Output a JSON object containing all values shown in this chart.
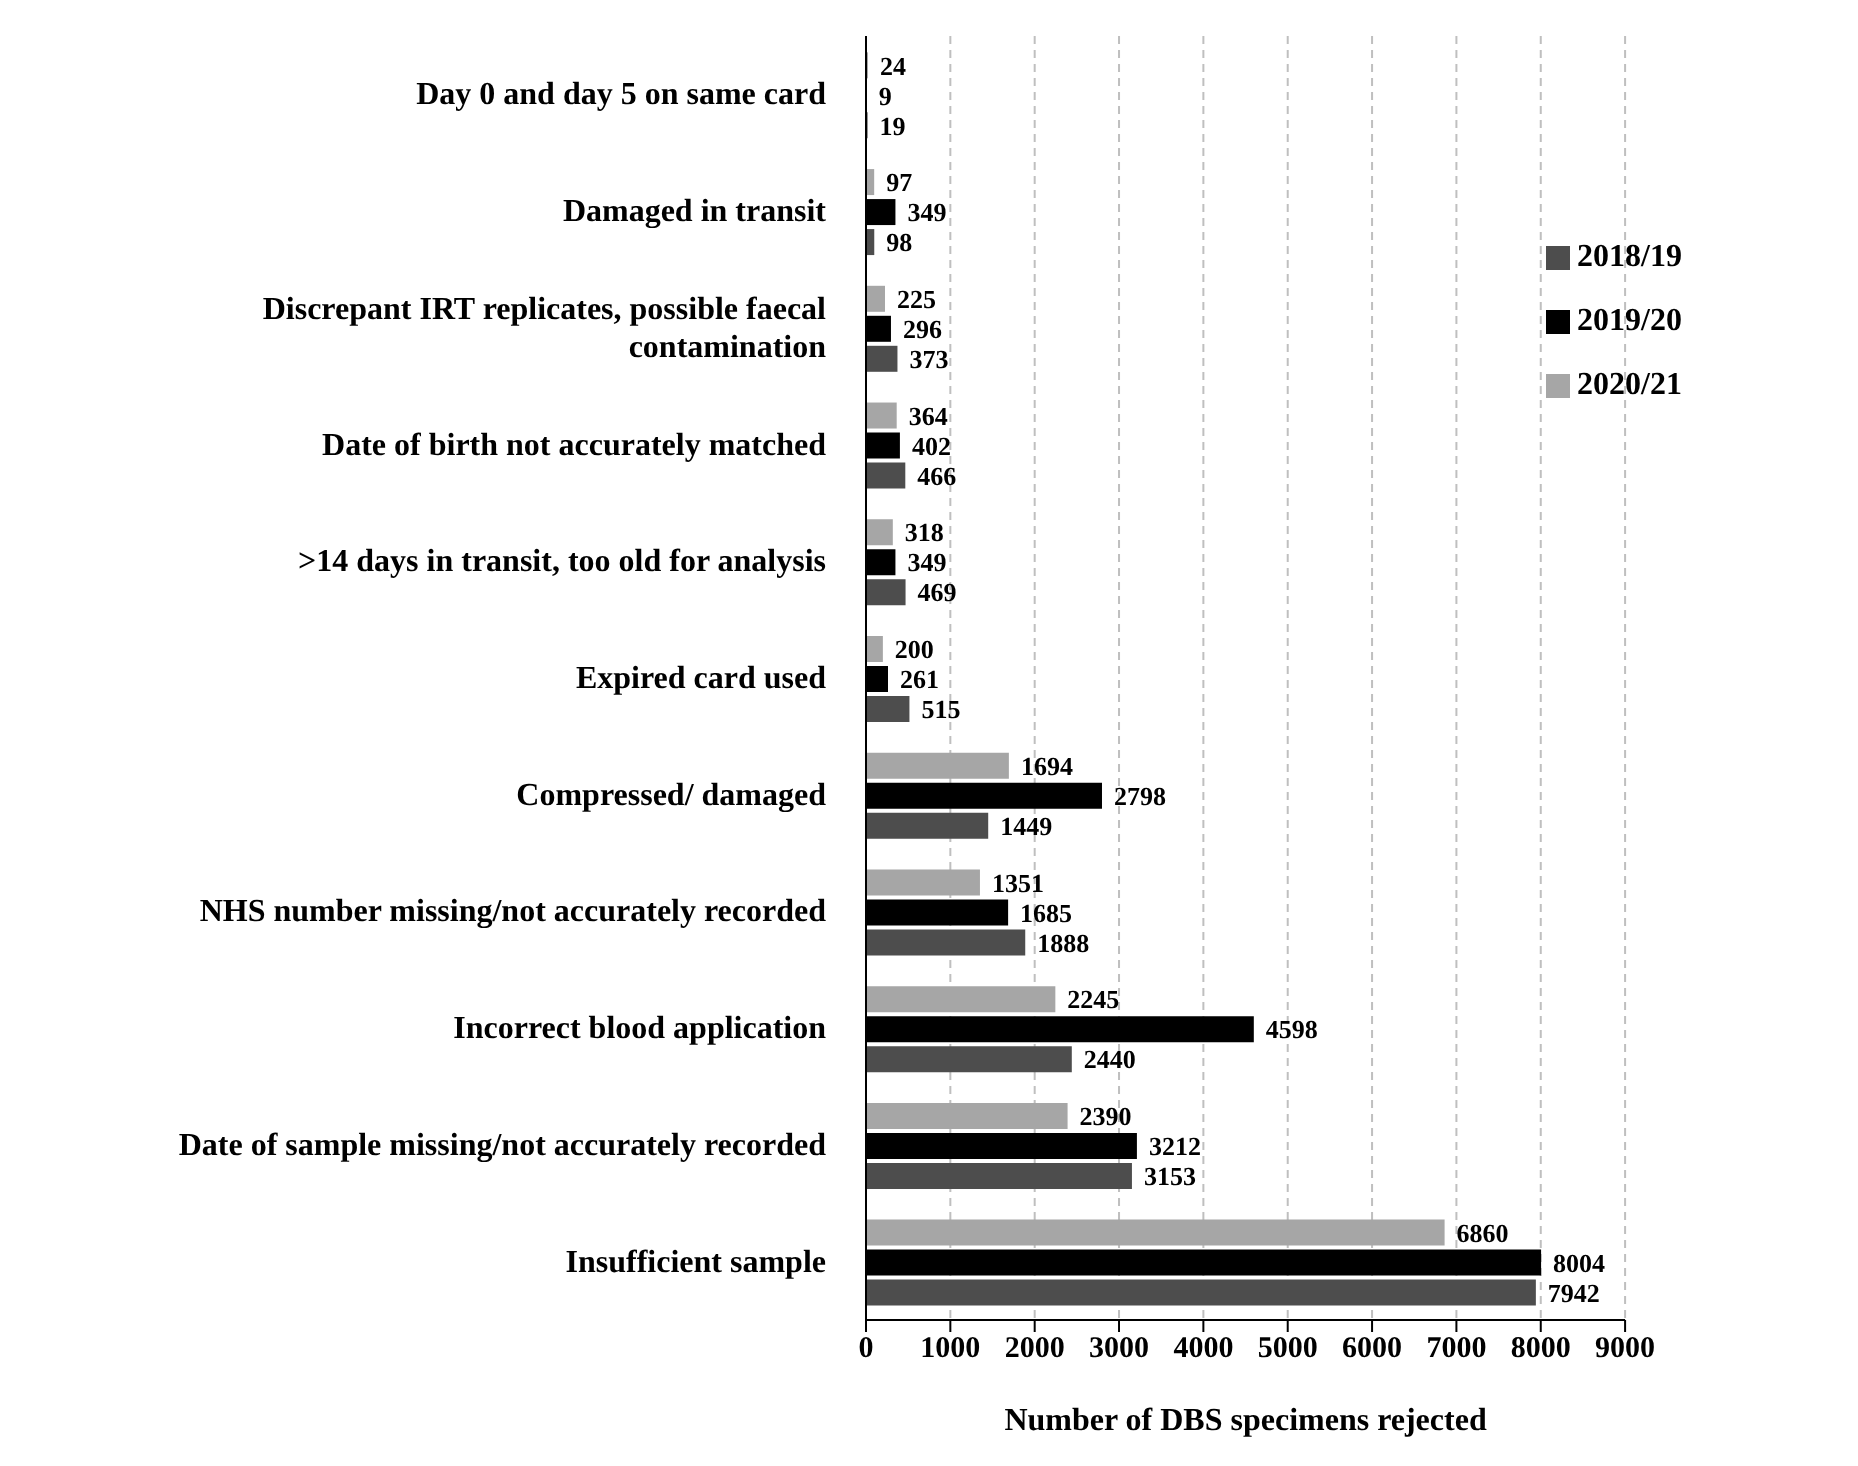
{
  "chart_data": {
    "type": "bar",
    "orientation": "horizontal",
    "xlabel": "Number of DBS specimens rejected",
    "categories": [
      "Day 0 and day 5 on same card",
      "Damaged in transit",
      "Discrepant IRT replicates, possible faecal contamination",
      "Date of birth not accurately matched",
      ">14 days in transit, too old for analysis",
      "Expired card used",
      "Compressed/ damaged",
      "NHS number missing/not accurately recorded",
      "Incorrect blood application",
      "Date of sample missing/not accurately recorded",
      "Insufficient sample"
    ],
    "series": [
      {
        "name": "2020/21",
        "color": "#a6a6a6",
        "values": [
          24,
          97,
          225,
          364,
          318,
          200,
          1694,
          1351,
          2245,
          2390,
          6860
        ]
      },
      {
        "name": "2019/20",
        "color": "#000000",
        "values": [
          9,
          349,
          296,
          402,
          349,
          261,
          2798,
          1685,
          4598,
          3212,
          8004
        ]
      },
      {
        "name": "2018/19",
        "color": "#4d4d4d",
        "values": [
          19,
          98,
          373,
          466,
          469,
          515,
          1449,
          1888,
          2440,
          3153,
          7942
        ]
      }
    ],
    "xlim": [
      0,
      9000
    ],
    "xticks": [
      0,
      1000,
      2000,
      3000,
      4000,
      5000,
      6000,
      7000,
      8000,
      9000
    ],
    "grid": "x",
    "legend": "right",
    "data_labels": true
  }
}
